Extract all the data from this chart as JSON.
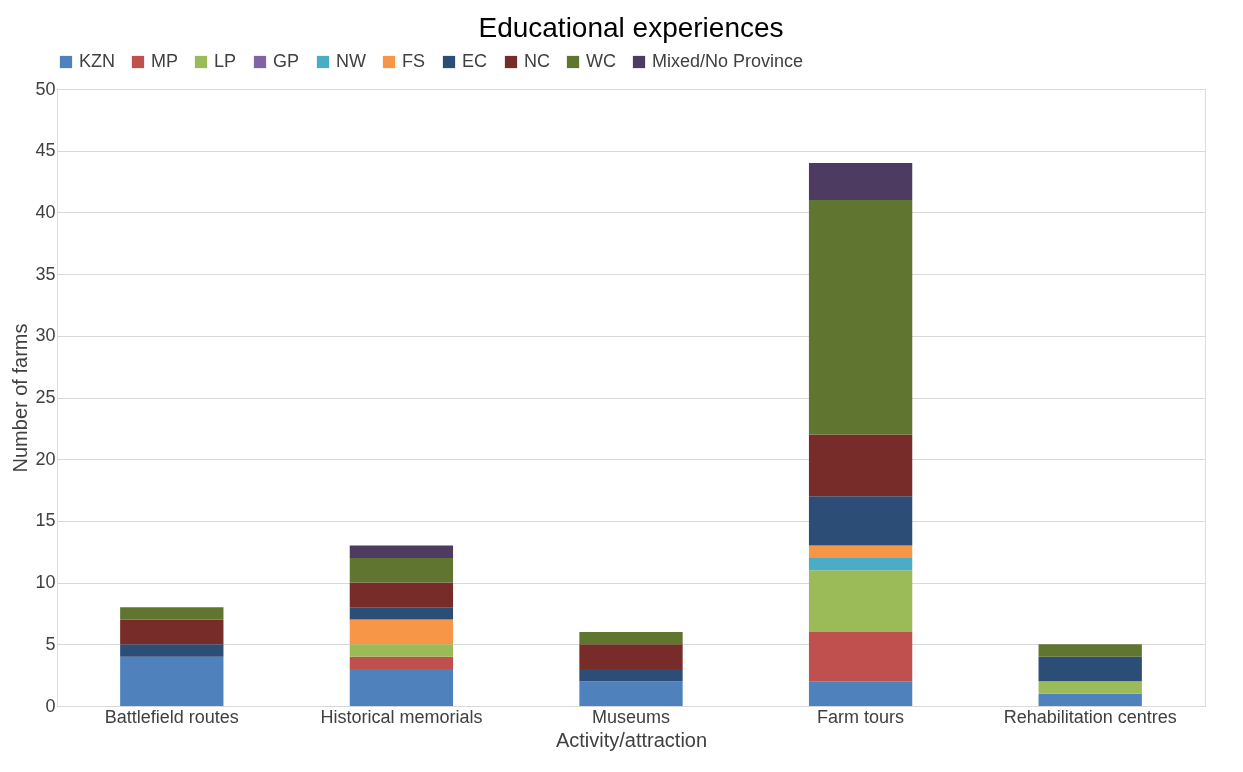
{
  "chart_data": {
    "type": "bar",
    "title": "Educational experiences",
    "xlabel": "Activity/attraction",
    "ylabel": "Number of farms",
    "categories": [
      "Battlefield routes",
      "Historical memorials",
      "Museums",
      "Farm tours",
      "Rehabilitation centres"
    ],
    "stacked": true,
    "ylim": [
      0,
      50
    ],
    "yticks": [
      0,
      5,
      10,
      15,
      20,
      25,
      30,
      35,
      40,
      45,
      50
    ],
    "grid": "y",
    "legend": "top",
    "series": [
      {
        "name": "KZN",
        "color": "#4f81bd",
        "values": [
          4,
          3,
          2,
          2,
          1
        ]
      },
      {
        "name": "MP",
        "color": "#c0504d",
        "values": [
          0,
          1,
          0,
          4,
          0
        ]
      },
      {
        "name": "LP",
        "color": "#9bbb59",
        "values": [
          0,
          1,
          0,
          5,
          1
        ]
      },
      {
        "name": "GP",
        "color": "#8064a2",
        "values": [
          0,
          0,
          0,
          0,
          0
        ]
      },
      {
        "name": "NW",
        "color": "#4bacc6",
        "values": [
          0,
          0,
          0,
          1,
          0
        ]
      },
      {
        "name": "FS",
        "color": "#f79646",
        "values": [
          0,
          2,
          0,
          1,
          0
        ]
      },
      {
        "name": "EC",
        "color": "#2c4d75",
        "values": [
          1,
          1,
          1,
          4,
          2
        ]
      },
      {
        "name": "NC",
        "color": "#772c2a",
        "values": [
          2,
          2,
          2,
          5,
          0
        ]
      },
      {
        "name": "WC",
        "color": "#5f7530",
        "values": [
          1,
          2,
          1,
          19,
          1
        ]
      },
      {
        "name": "Mixed/No Province",
        "color": "#4d3b62",
        "values": [
          0,
          1,
          0,
          3,
          0
        ]
      }
    ]
  }
}
